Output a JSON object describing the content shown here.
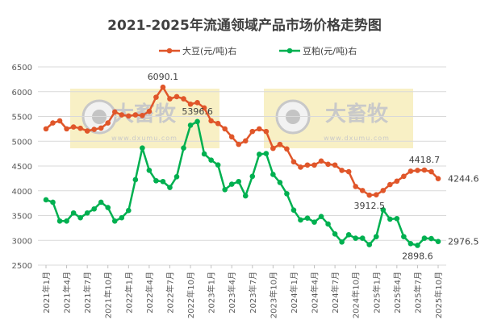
{
  "chart_data": {
    "type": "line",
    "title": "2021-2025年流通领域产品市场价格走势图",
    "xlabel": "",
    "ylabel": "",
    "ylim": [
      2500,
      6500
    ],
    "yticks": [
      2500,
      3000,
      3500,
      4000,
      4500,
      5000,
      5500,
      6000,
      6500
    ],
    "grid": true,
    "legend_position": "top",
    "categories": [
      "2021年1月",
      "2021年2月",
      "2021年3月",
      "2021年4月",
      "2021年5月",
      "2021年6月",
      "2021年7月",
      "2021年8月",
      "2021年9月",
      "2021年10月",
      "2021年11月",
      "2021年12月",
      "2022年1月",
      "2022年2月",
      "2022年3月",
      "2022年4月",
      "2022年5月",
      "2022年6月",
      "2022年7月",
      "2022年8月",
      "2022年9月",
      "2022年10月",
      "2022年11月",
      "2022年12月",
      "2023年1月",
      "2023年2月",
      "2023年3月",
      "2023年4月",
      "2023年5月",
      "2023年6月",
      "2023年7月",
      "2023年8月",
      "2023年9月",
      "2023年10月",
      "2023年11月",
      "2023年12月",
      "2024年1月",
      "2024年2月",
      "2024年3月",
      "2024年4月",
      "2024年5月",
      "2024年6月",
      "2024年7月",
      "2024年8月",
      "2024年9月",
      "2024年10月",
      "2024年11月",
      "2024年12月",
      "2025年1月",
      "2025年2月",
      "2025年3月",
      "2025年4月",
      "2025年5月",
      "2025年6月",
      "2025年7月",
      "2025年8月",
      "2025年9月",
      "2025年10月"
    ],
    "xtick_labels": [
      "2021年1月",
      "2021年4月",
      "2021年7月",
      "2021年10月",
      "2022年1月",
      "2022年4月",
      "2022年7月",
      "2022年10月",
      "2023年1月",
      "2023年4月",
      "2023年7月",
      "2023年10月",
      "2024年1月",
      "2024年4月",
      "2024年7月",
      "2024年10月",
      "2025年1月",
      "2025年4月",
      "2025年7月",
      "2025年10月"
    ],
    "series": [
      {
        "name": "大豆(元/吨)右",
        "color": "#E0562A",
        "values": [
          5250,
          5369,
          5412,
          5250,
          5288,
          5261,
          5207,
          5239,
          5266,
          5369,
          5591,
          5531,
          5510,
          5531,
          5520,
          5602,
          5888,
          6090.1,
          5856,
          5900,
          5856,
          5748,
          5780,
          5672,
          5412,
          5358,
          5250,
          5088,
          4937,
          5007,
          5197,
          5250,
          5197,
          4856,
          4937,
          4845,
          4585,
          4476,
          4520,
          4520,
          4601,
          4536,
          4520,
          4412,
          4385,
          4087,
          4006,
          3912.5,
          3920,
          4006,
          4125,
          4195,
          4292,
          4395,
          4412,
          4418.7,
          4385,
          4244.6
        ],
        "labels": [
          {
            "index": 17,
            "text": "6090.1",
            "pos": "above"
          },
          {
            "index": 47,
            "text": "3912.5",
            "pos": "below"
          },
          {
            "index": 55,
            "text": "4418.7",
            "pos": "above"
          },
          {
            "index": 57,
            "text": "4244.6",
            "pos": "right"
          }
        ]
      },
      {
        "name": "豆粕(元/吨)右",
        "color": "#00B050",
        "values": [
          3818,
          3769,
          3390,
          3390,
          3553,
          3456,
          3553,
          3634,
          3769,
          3661,
          3390,
          3456,
          3602,
          4224,
          4863,
          4414,
          4203,
          4187,
          4067,
          4284,
          4863,
          5323,
          5396.6,
          4744,
          4620,
          4522,
          4024,
          4133,
          4187,
          3898,
          4292,
          4736,
          4752,
          4330,
          4168,
          3941,
          3611,
          3411,
          3449,
          3368,
          3481,
          3330,
          3129,
          2967,
          3113,
          3043,
          3043,
          2913,
          3075,
          3616,
          3428,
          3439,
          3075,
          2934,
          2898.6,
          3043,
          3035,
          2976.5
        ],
        "labels": [
          {
            "index": 22,
            "text": "5396.6",
            "pos": "above"
          },
          {
            "index": 54,
            "text": "2898.6",
            "pos": "below"
          },
          {
            "index": 57,
            "text": "2976.5",
            "pos": "right"
          }
        ]
      }
    ]
  },
  "watermark": {
    "brand": "大畜牧",
    "url": "www.dxumu.com"
  }
}
